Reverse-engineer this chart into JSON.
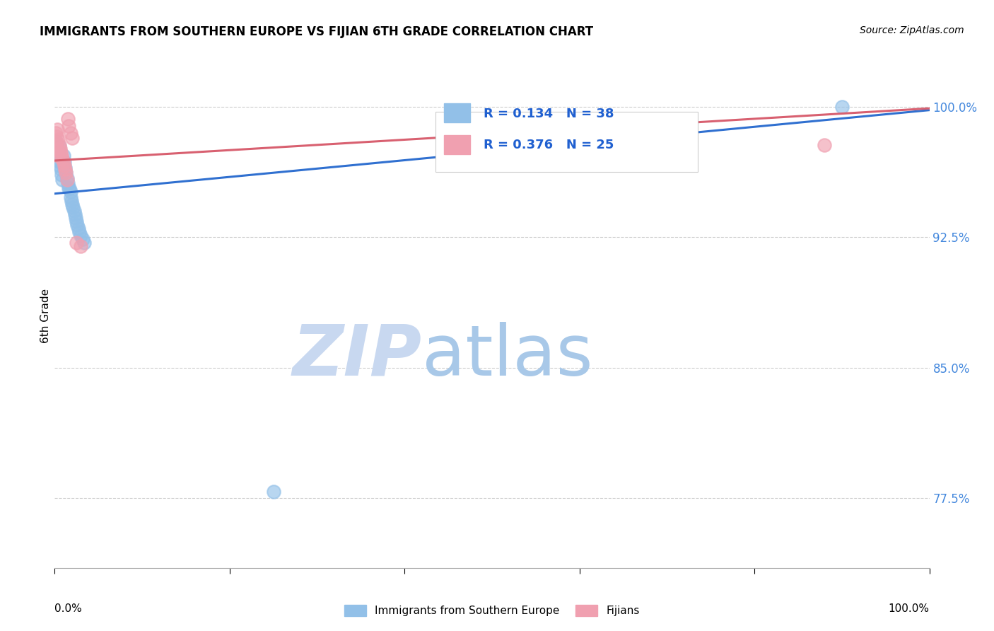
{
  "title": "IMMIGRANTS FROM SOUTHERN EUROPE VS FIJIAN 6TH GRADE CORRELATION CHART",
  "source": "Source: ZipAtlas.com",
  "ylabel": "6th Grade",
  "ylabel_right_labels": [
    "100.0%",
    "92.5%",
    "85.0%",
    "77.5%"
  ],
  "ylabel_right_values": [
    1.0,
    0.925,
    0.85,
    0.775
  ],
  "xmin": 0.0,
  "xmax": 1.0,
  "ymin": 0.735,
  "ymax": 1.025,
  "legend_blue_r": "0.134",
  "legend_blue_n": "38",
  "legend_pink_r": "0.376",
  "legend_pink_n": "25",
  "legend_label_blue": "Immigrants from Southern Europe",
  "legend_label_pink": "Fijians",
  "blue_color": "#92c0e8",
  "pink_color": "#f0a0b0",
  "blue_line_color": "#3070d0",
  "pink_line_color": "#d86070",
  "grid_color": "#cccccc",
  "background_color": "#ffffff",
  "blue_scatter_x": [
    0.001,
    0.002,
    0.002,
    0.003,
    0.003,
    0.004,
    0.004,
    0.005,
    0.005,
    0.006,
    0.007,
    0.008,
    0.009,
    0.01,
    0.011,
    0.012,
    0.013,
    0.014,
    0.015,
    0.016,
    0.017,
    0.018,
    0.018,
    0.019,
    0.02,
    0.021,
    0.022,
    0.023,
    0.024,
    0.025,
    0.026,
    0.027,
    0.028,
    0.03,
    0.032,
    0.034,
    0.25,
    0.9
  ],
  "blue_scatter_y": [
    0.98,
    0.978,
    0.975,
    0.976,
    0.972,
    0.974,
    0.969,
    0.977,
    0.966,
    0.968,
    0.964,
    0.961,
    0.958,
    0.972,
    0.968,
    0.965,
    0.962,
    0.959,
    0.956,
    0.953,
    0.953,
    0.951,
    0.948,
    0.946,
    0.944,
    0.942,
    0.94,
    0.938,
    0.936,
    0.934,
    0.932,
    0.93,
    0.928,
    0.926,
    0.924,
    0.922,
    0.779,
    1.0
  ],
  "pink_scatter_x": [
    0.001,
    0.002,
    0.002,
    0.003,
    0.003,
    0.004,
    0.004,
    0.005,
    0.006,
    0.007,
    0.008,
    0.009,
    0.01,
    0.011,
    0.012,
    0.013,
    0.014,
    0.015,
    0.016,
    0.018,
    0.02,
    0.025,
    0.03,
    0.6,
    0.88
  ],
  "pink_scatter_y": [
    0.985,
    0.983,
    0.979,
    0.987,
    0.975,
    0.981,
    0.972,
    0.978,
    0.976,
    0.974,
    0.972,
    0.97,
    0.968,
    0.966,
    0.964,
    0.962,
    0.958,
    0.993,
    0.989,
    0.985,
    0.982,
    0.922,
    0.92,
    0.993,
    0.978
  ],
  "blue_line_x0": 0.0,
  "blue_line_y0": 0.95,
  "blue_line_x1": 1.0,
  "blue_line_y1": 0.998,
  "pink_line_x0": 0.0,
  "pink_line_y0": 0.969,
  "pink_line_x1": 1.0,
  "pink_line_y1": 0.999
}
